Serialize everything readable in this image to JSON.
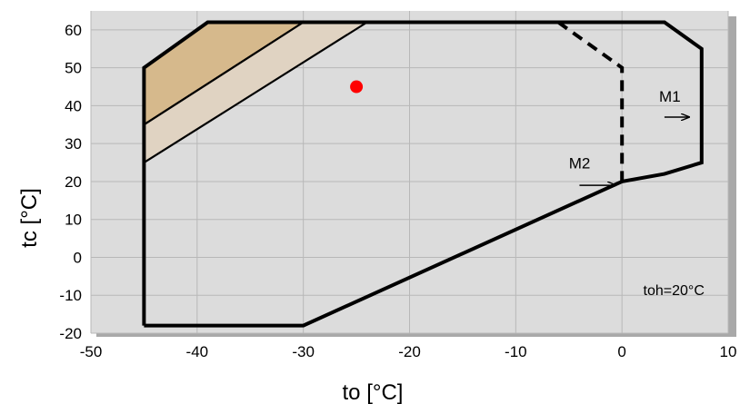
{
  "chart_data": {
    "type": "area",
    "title": "",
    "xlabel": "to [°C]",
    "ylabel": "tc [°C]",
    "xlim": [
      -50,
      10
    ],
    "ylim": [
      -20,
      65
    ],
    "x_ticks": [
      -50,
      -40,
      -30,
      -20,
      -10,
      0,
      10
    ],
    "y_ticks": [
      -20,
      -10,
      0,
      10,
      20,
      30,
      40,
      50,
      60
    ],
    "grid": true,
    "plot_background": "#dcdcdc",
    "envelope_outer": {
      "points": [
        [
          -45,
          -18
        ],
        [
          -30,
          -18
        ],
        [
          0,
          20
        ],
        [
          4,
          22
        ],
        [
          7.5,
          25
        ],
        [
          7.5,
          55
        ],
        [
          4,
          62
        ],
        [
          -39,
          62
        ],
        [
          -45,
          50
        ],
        [
          -45,
          -18
        ]
      ],
      "color": "#000000",
      "style": "solid"
    },
    "envelope_inner_dashed": {
      "points": [
        [
          -6,
          62
        ],
        [
          0,
          50
        ],
        [
          0,
          20
        ]
      ],
      "color": "#000000",
      "style": "dashed"
    },
    "shaded_regions": [
      {
        "points": [
          [
            -45,
            50
          ],
          [
            -39,
            62
          ],
          [
            -30,
            62
          ],
          [
            -45,
            35
          ]
        ],
        "color": "#d6b98c"
      },
      {
        "points": [
          [
            -45,
            35
          ],
          [
            -30,
            62
          ],
          [
            -24,
            62
          ],
          [
            -45,
            25
          ]
        ],
        "color": "#e0d3c2"
      }
    ],
    "point": {
      "x": -25,
      "y": 45,
      "color": "#ff0000"
    },
    "annotations": [
      {
        "text": "M1",
        "x": 3.5,
        "y": 41,
        "arrow_from": [
          4,
          37
        ],
        "arrow_to": [
          6.3,
          37
        ]
      },
      {
        "text": "M2",
        "x": -5,
        "y": 23.5,
        "arrow_from": [
          -4,
          19
        ],
        "arrow_to": [
          -0.6,
          19
        ]
      },
      {
        "text": "toh=20°C",
        "x": 2,
        "y": -10
      }
    ]
  }
}
